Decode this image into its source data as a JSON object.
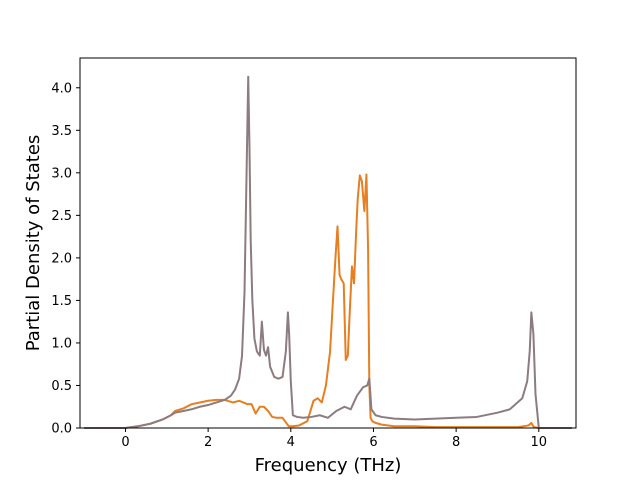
{
  "chart_data": {
    "type": "line",
    "title": "",
    "xlabel": "Frequency (THz)",
    "ylabel": "Partial Density of States",
    "xlim": [
      -1.1,
      10.9
    ],
    "ylim": [
      0.0,
      4.35
    ],
    "x_ticks": [
      0,
      2,
      4,
      6,
      8,
      10
    ],
    "y_ticks": [
      0.0,
      0.5,
      1.0,
      1.5,
      2.0,
      2.5,
      3.0,
      3.5,
      4.0
    ],
    "x_tick_labels": [
      "0",
      "2",
      "4",
      "6",
      "8",
      "10"
    ],
    "y_tick_labels": [
      "0.0",
      "0.5",
      "1.0",
      "1.5",
      "2.0",
      "2.5",
      "3.0",
      "3.5",
      "4.0"
    ],
    "grid": false,
    "legend": "none",
    "series": [
      {
        "color": "#e67e22",
        "x": [
          -1.0,
          0.0,
          0.3,
          0.6,
          0.9,
          1.1,
          1.2,
          1.4,
          1.6,
          1.8,
          2.0,
          2.2,
          2.4,
          2.6,
          2.75,
          2.85,
          2.95,
          3.05,
          3.15,
          3.25,
          3.35,
          3.45,
          3.55,
          3.65,
          3.8,
          3.95,
          4.05,
          4.2,
          4.4,
          4.55,
          4.65,
          4.75,
          4.85,
          4.95,
          5.02,
          5.08,
          5.13,
          5.18,
          5.22,
          5.28,
          5.33,
          5.38,
          5.42,
          5.48,
          5.53,
          5.58,
          5.62,
          5.67,
          5.72,
          5.78,
          5.83,
          5.87,
          5.9,
          5.93,
          5.97,
          6.05,
          6.2,
          6.5,
          7.0,
          7.5,
          8.0,
          8.5,
          9.0,
          9.5,
          9.75,
          9.82,
          9.88,
          10.0,
          10.8
        ],
        "y": [
          0.0,
          0.0,
          0.02,
          0.05,
          0.1,
          0.15,
          0.2,
          0.23,
          0.28,
          0.3,
          0.32,
          0.33,
          0.33,
          0.3,
          0.32,
          0.3,
          0.28,
          0.28,
          0.17,
          0.25,
          0.25,
          0.2,
          0.13,
          0.12,
          0.12,
          0.02,
          0.02,
          0.03,
          0.08,
          0.32,
          0.35,
          0.3,
          0.5,
          0.9,
          1.5,
          2.0,
          2.37,
          1.8,
          1.75,
          1.7,
          0.8,
          0.85,
          1.3,
          1.9,
          1.7,
          2.3,
          2.7,
          2.97,
          2.9,
          2.55,
          2.98,
          2.1,
          0.5,
          0.12,
          0.08,
          0.06,
          0.04,
          0.02,
          0.02,
          0.01,
          0.01,
          0.01,
          0.01,
          0.01,
          0.03,
          0.06,
          0.01,
          0.0,
          0.0
        ]
      },
      {
        "color": "#8c7b7f",
        "x": [
          -1.0,
          0.0,
          0.3,
          0.6,
          0.9,
          1.1,
          1.2,
          1.4,
          1.6,
          1.8,
          2.0,
          2.2,
          2.4,
          2.55,
          2.65,
          2.75,
          2.82,
          2.88,
          2.93,
          2.97,
          3.0,
          3.03,
          3.07,
          3.12,
          3.18,
          3.25,
          3.3,
          3.35,
          3.4,
          3.45,
          3.5,
          3.6,
          3.7,
          3.8,
          3.88,
          3.93,
          3.96,
          4.0,
          4.05,
          4.15,
          4.3,
          4.5,
          4.7,
          4.9,
          5.1,
          5.3,
          5.45,
          5.6,
          5.75,
          5.85,
          5.9,
          5.95,
          6.05,
          6.2,
          6.5,
          7.0,
          7.5,
          8.0,
          8.5,
          9.0,
          9.3,
          9.6,
          9.72,
          9.78,
          9.82,
          9.87,
          9.92,
          10.0,
          10.8
        ],
        "y": [
          0.0,
          0.0,
          0.02,
          0.05,
          0.1,
          0.15,
          0.18,
          0.2,
          0.22,
          0.25,
          0.27,
          0.3,
          0.33,
          0.38,
          0.45,
          0.58,
          0.85,
          1.6,
          3.0,
          4.13,
          3.3,
          2.2,
          1.5,
          1.05,
          0.9,
          0.85,
          1.25,
          0.92,
          0.85,
          0.95,
          0.72,
          0.6,
          0.58,
          0.6,
          0.9,
          1.36,
          1.1,
          0.55,
          0.15,
          0.13,
          0.12,
          0.13,
          0.15,
          0.12,
          0.2,
          0.25,
          0.22,
          0.38,
          0.48,
          0.5,
          0.58,
          0.22,
          0.15,
          0.13,
          0.11,
          0.1,
          0.11,
          0.12,
          0.13,
          0.18,
          0.22,
          0.35,
          0.55,
          0.9,
          1.36,
          1.1,
          0.4,
          0.0,
          0.0
        ]
      }
    ]
  }
}
